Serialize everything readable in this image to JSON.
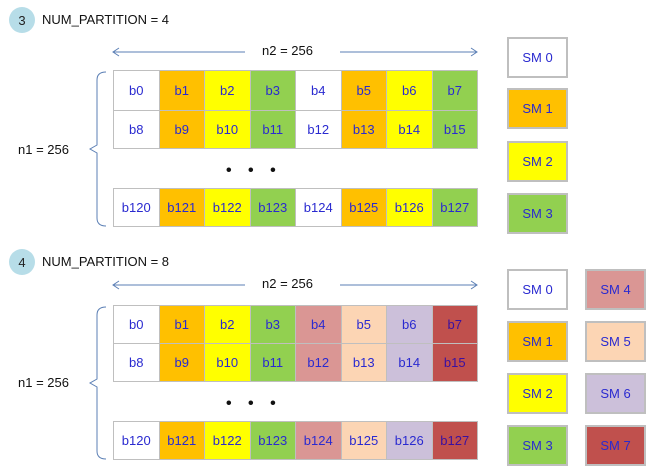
{
  "sm_colors": [
    "#ffffff",
    "#ffc000",
    "#ffff00",
    "#92d050",
    "#da9694",
    "#fcd5b4",
    "#ccc0da",
    "#c0504d"
  ],
  "text_color": "#2a2ad0",
  "sections": [
    {
      "step": "3",
      "title": "NUM_PARTITION = 4",
      "partitions": 4,
      "n2_label": "n2 = 256",
      "n1_label": "n1 = 256",
      "ellipsis": "• • •",
      "rows": [
        [
          "b0",
          "b1",
          "b2",
          "b3",
          "b4",
          "b5",
          "b6",
          "b7"
        ],
        [
          "b8",
          "b9",
          "b10",
          "b11",
          "b12",
          "b13",
          "b14",
          "b15"
        ],
        [
          "b120",
          "b121",
          "b122",
          "b123",
          "b124",
          "b125",
          "b126",
          "b127"
        ]
      ],
      "sm_labels": [
        "SM 0",
        "SM 1",
        "SM 2",
        "SM 3"
      ]
    },
    {
      "step": "4",
      "title": "NUM_PARTITION = 8",
      "partitions": 8,
      "n2_label": "n2 = 256",
      "n1_label": "n1 = 256",
      "ellipsis": "• • •",
      "rows": [
        [
          "b0",
          "b1",
          "b2",
          "b3",
          "b4",
          "b5",
          "b6",
          "b7"
        ],
        [
          "b8",
          "b9",
          "b10",
          "b11",
          "b12",
          "b13",
          "b14",
          "b15"
        ],
        [
          "b120",
          "b121",
          "b122",
          "b123",
          "b124",
          "b125",
          "b126",
          "b127"
        ]
      ],
      "sm_labels": [
        "SM 0",
        "SM 1",
        "SM 2",
        "SM 3",
        "SM 4",
        "SM 5",
        "SM 6",
        "SM 7"
      ]
    }
  ]
}
